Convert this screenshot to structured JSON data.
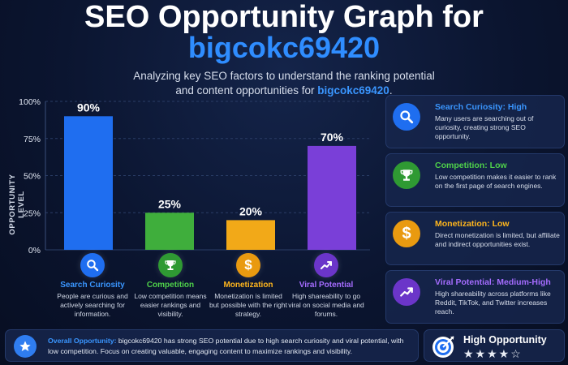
{
  "header": {
    "title_line1": "SEO Opportunity Graph for",
    "title_line2": "bigcokc69420",
    "subtitle_line1": "Analyzing key SEO factors to understand the ranking potential",
    "subtitle_line2_prefix": "and content opportunities for ",
    "subtitle_line2_highlight": "bigcokc69420",
    "subtitle_line2_suffix": "."
  },
  "chart_data": {
    "type": "bar",
    "categories": [
      "Search Curiosity",
      "Competition",
      "Monetization",
      "Viral Potential"
    ],
    "values": [
      90,
      25,
      20,
      70
    ],
    "value_labels": [
      "90%",
      "25%",
      "20%",
      "70%"
    ],
    "colors": [
      "#1f6ef0",
      "#3fae3c",
      "#f2a918",
      "#7a3fd8"
    ],
    "ylabel": "OPPORTUNITY LEVEL",
    "yticks": [
      "0%",
      "25%",
      "50%",
      "75%",
      "100%"
    ],
    "ylim": [
      0,
      100
    ],
    "grid": true
  },
  "categories_info": [
    {
      "name": "Search Curiosity",
      "icon": "magnifier-icon",
      "color": "#3a96ff",
      "bg": "#1f6ef0",
      "desc": "People are curious and actively searching for information."
    },
    {
      "name": "Competition",
      "icon": "trophy-icon",
      "color": "#4fd14a",
      "bg": "#2f9a33",
      "desc": "Low competition means easier rankings and visibility."
    },
    {
      "name": "Monetization",
      "icon": "dollar-icon",
      "color": "#ffb61d",
      "bg": "#e99a10",
      "desc": "Monetization is limited but possible with the right strategy."
    },
    {
      "name": "Viral Potential",
      "icon": "trend-up-icon",
      "color": "#a56cff",
      "bg": "#6b35c9",
      "desc": "High shareability to go viral on social media and forums."
    }
  ],
  "sidebar": [
    {
      "title": "Search Curiosity: High",
      "color": "#3a96ff",
      "bg": "#1f6ef0",
      "icon": "magnifier-icon",
      "desc": "Many users are searching out of curiosity, creating strong SEO opportunity."
    },
    {
      "title": "Competition: Low",
      "color": "#4fd14a",
      "bg": "#2f9a33",
      "icon": "trophy-icon",
      "desc": "Low competition makes it easier to rank on the first page of search engines."
    },
    {
      "title": "Monetization: Low",
      "color": "#ffb61d",
      "bg": "#e99a10",
      "icon": "dollar-icon",
      "desc": "Direct monetization is limited, but affiliate and indirect opportunities exist."
    },
    {
      "title": "Viral Potential: Medium-High",
      "color": "#a56cff",
      "bg": "#6b35c9",
      "icon": "trend-up-icon",
      "desc": "High shareability across platforms like Reddit, TikTok, and Twitter increases reach."
    }
  ],
  "summary": {
    "label": "Overall Opportunity:",
    "text": " bigcokc69420 has strong SEO potential due to high search curiosity and viral potential, with low competition. Focus on creating valuable, engaging content to maximize rankings and visibility.",
    "icon": "star-icon"
  },
  "rating": {
    "title": "High Opportunity",
    "stars": "★★★★☆",
    "icon": "target-icon"
  }
}
